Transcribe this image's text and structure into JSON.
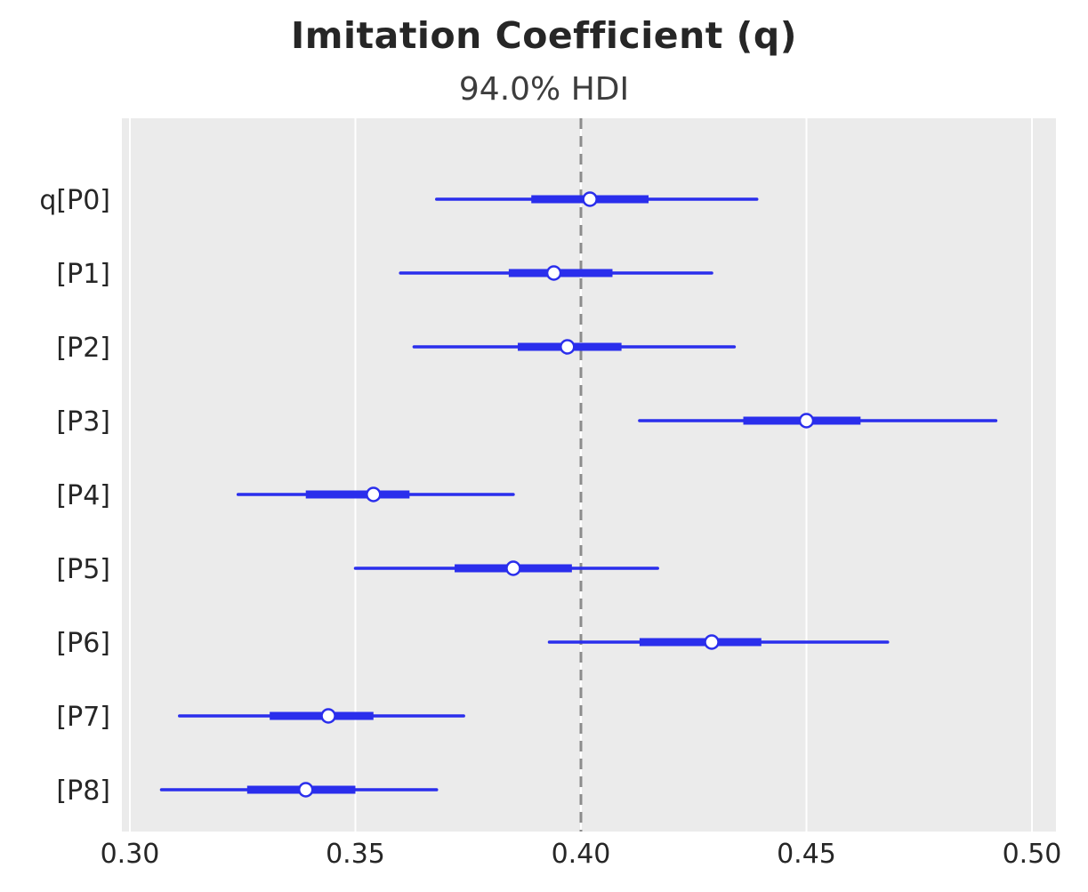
{
  "chart_data": {
    "type": "forest",
    "title": "Imitation Coefficient (q)",
    "subtitle": "94.0% HDI",
    "xlabel": "",
    "ylabel": "",
    "xlim": [
      0.3,
      0.5
    ],
    "xticks": [
      0.3,
      0.35,
      0.4,
      0.45,
      0.5
    ],
    "reference_line": 0.4,
    "legend": "none",
    "grid": "vertical-white-on-gray",
    "rows": [
      {
        "label": "q[P0]",
        "hdi_lo": 0.368,
        "hdi_hi": 0.439,
        "iq_lo": 0.389,
        "iq_hi": 0.415,
        "point": 0.402
      },
      {
        "label": "[P1]",
        "hdi_lo": 0.36,
        "hdi_hi": 0.429,
        "iq_lo": 0.384,
        "iq_hi": 0.407,
        "point": 0.394
      },
      {
        "label": "[P2]",
        "hdi_lo": 0.363,
        "hdi_hi": 0.434,
        "iq_lo": 0.386,
        "iq_hi": 0.409,
        "point": 0.397
      },
      {
        "label": "[P3]",
        "hdi_lo": 0.413,
        "hdi_hi": 0.492,
        "iq_lo": 0.436,
        "iq_hi": 0.462,
        "point": 0.45
      },
      {
        "label": "[P4]",
        "hdi_lo": 0.324,
        "hdi_hi": 0.385,
        "iq_lo": 0.339,
        "iq_hi": 0.362,
        "point": 0.354
      },
      {
        "label": "[P5]",
        "hdi_lo": 0.35,
        "hdi_hi": 0.417,
        "iq_lo": 0.372,
        "iq_hi": 0.398,
        "point": 0.385
      },
      {
        "label": "[P6]",
        "hdi_lo": 0.393,
        "hdi_hi": 0.468,
        "iq_lo": 0.413,
        "iq_hi": 0.44,
        "point": 0.429
      },
      {
        "label": "[P7]",
        "hdi_lo": 0.311,
        "hdi_hi": 0.374,
        "iq_lo": 0.331,
        "iq_hi": 0.354,
        "point": 0.344
      },
      {
        "label": "[P8]",
        "hdi_lo": 0.307,
        "hdi_hi": 0.368,
        "iq_lo": 0.326,
        "iq_hi": 0.35,
        "point": 0.339
      }
    ],
    "colors": {
      "line": "#2a2eec",
      "point_fill": "#ffffff",
      "reference": "#8c8c8c",
      "plot_bg": "#ebebeb",
      "grid": "#ffffff",
      "text": "#262626"
    }
  }
}
